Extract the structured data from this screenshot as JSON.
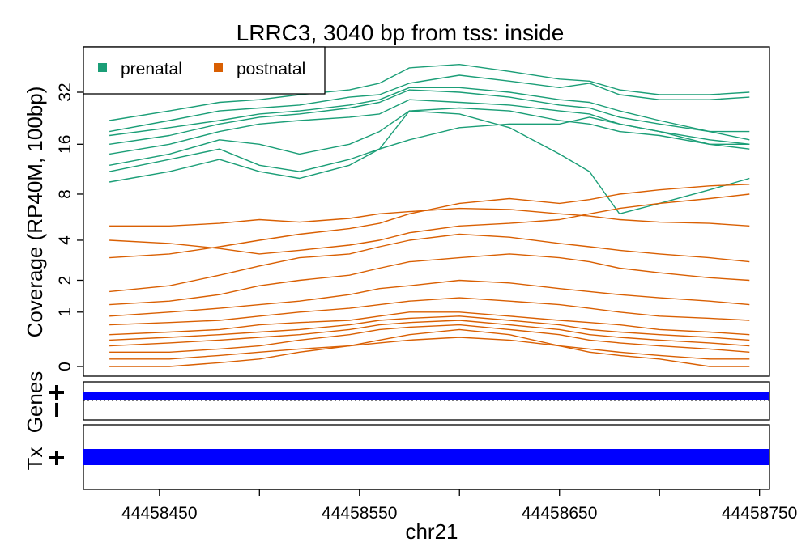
{
  "chart_data": {
    "type": "line",
    "title": "LRRC3, 3040 bp from tss: inside",
    "xlabel": "chr21",
    "ylabel": "Coverage (RP40M, 100bp)",
    "x_ticks": [
      44458450,
      44458550,
      44458650,
      44458750
    ],
    "x_range": [
      44458412,
      44458755
    ],
    "x_data_range": [
      44458425,
      44458745
    ],
    "y_scale": "log2(y+1)",
    "y_ticks": [
      0,
      1,
      2,
      4,
      8,
      16,
      32
    ],
    "legend_position": "top-left",
    "legend": [
      {
        "name": "prenatal",
        "color": "#1B9E77"
      },
      {
        "name": "postnatal",
        "color": "#D95F02"
      }
    ],
    "series": [
      {
        "group": "prenatal",
        "color": "#1B9E77",
        "x": [
          44458425,
          44458455,
          44458480,
          44458500,
          44458520,
          44458545,
          44458560,
          44458575,
          44458600,
          44458625,
          44458650,
          44458665,
          44458680,
          44458700,
          44458725,
          44458745
        ],
        "y": [
          22,
          25,
          28,
          29,
          31,
          33,
          36,
          44,
          46,
          42,
          38,
          37,
          33,
          31,
          31,
          32
        ]
      },
      {
        "group": "prenatal",
        "color": "#1B9E77",
        "x": [
          44458425,
          44458455,
          44458480,
          44458500,
          44458520,
          44458545,
          44458560,
          44458575,
          44458600,
          44458625,
          44458650,
          44458665,
          44458680,
          44458700,
          44458725,
          44458745
        ],
        "y": [
          19,
          22,
          25,
          26,
          27,
          30,
          31,
          36,
          40,
          37,
          34,
          36,
          31,
          29,
          29,
          30
        ]
      },
      {
        "group": "prenatal",
        "color": "#1B9E77",
        "x": [
          44458425,
          44458455,
          44458480,
          44458500,
          44458520,
          44458545,
          44458560,
          44458575,
          44458600,
          44458625,
          44458650,
          44458665,
          44458680,
          44458700,
          44458725,
          44458745
        ],
        "y": [
          18,
          20,
          22,
          24,
          25,
          27,
          29,
          34,
          34,
          32,
          29,
          28,
          25,
          22,
          19,
          17
        ]
      },
      {
        "group": "prenatal",
        "color": "#1B9E77",
        "x": [
          44458425,
          44458455,
          44458480,
          44458500,
          44458520,
          44458545,
          44458560,
          44458575,
          44458600,
          44458625,
          44458650,
          44458665,
          44458680,
          44458700,
          44458725,
          44458745
        ],
        "y": [
          16,
          18,
          21,
          23,
          24,
          26,
          28,
          33,
          32,
          30,
          27,
          26,
          23,
          21,
          19,
          19
        ]
      },
      {
        "group": "prenatal",
        "color": "#1B9E77",
        "x": [
          44458425,
          44458455,
          44458480,
          44458500,
          44458520,
          44458545,
          44458560,
          44458575,
          44458600,
          44458625,
          44458650,
          44458665,
          44458680,
          44458700,
          44458725,
          44458745
        ],
        "y": [
          14,
          16,
          19,
          21,
          22,
          23,
          24,
          29,
          28,
          27,
          25,
          24,
          21,
          19,
          17,
          16
        ]
      },
      {
        "group": "prenatal",
        "color": "#1B9E77",
        "x": [
          44458425,
          44458455,
          44458480,
          44458500,
          44458520,
          44458545,
          44458560,
          44458575,
          44458600,
          44458625,
          44458650,
          44458665,
          44458680,
          44458700,
          44458725,
          44458745
        ],
        "y": [
          12,
          14,
          17,
          16,
          14,
          16,
          19,
          25,
          26,
          25,
          22,
          21,
          19,
          18,
          16,
          16
        ]
      },
      {
        "group": "prenatal",
        "color": "#1B9E77",
        "x": [
          44458425,
          44458455,
          44458480,
          44458500,
          44458520,
          44458545,
          44458560,
          44458575,
          44458600,
          44458625,
          44458650,
          44458665,
          44458680,
          44458700,
          44458725,
          44458745
        ],
        "y": [
          11,
          13,
          15,
          12,
          11,
          13,
          15,
          17,
          20,
          21,
          21,
          23,
          21,
          19,
          16,
          15
        ]
      },
      {
        "group": "prenatal",
        "color": "#1B9E77",
        "x": [
          44458425,
          44458455,
          44458480,
          44458500,
          44458520,
          44458545,
          44458560,
          44458575,
          44458600,
          44458625,
          44458650,
          44458665,
          44458680,
          44458700,
          44458725,
          44458745
        ],
        "y": [
          9.5,
          11,
          13,
          11,
          10,
          12,
          15,
          25,
          24,
          20,
          14,
          11,
          6,
          7,
          8.5,
          10
        ]
      },
      {
        "group": "postnatal",
        "color": "#D95F02",
        "x": [
          44458425,
          44458455,
          44458480,
          44458500,
          44458520,
          44458545,
          44458560,
          44458575,
          44458600,
          44458625,
          44458650,
          44458665,
          44458680,
          44458700,
          44458725,
          44458745
        ],
        "y": [
          5,
          5,
          5.2,
          5.5,
          5.3,
          5.6,
          6,
          6.2,
          6.5,
          6.4,
          6,
          5.8,
          5.5,
          5.3,
          5.2,
          5
        ]
      },
      {
        "group": "postnatal",
        "color": "#D95F02",
        "x": [
          44458425,
          44458455,
          44458480,
          44458500,
          44458520,
          44458545,
          44458560,
          44458575,
          44458600,
          44458625,
          44458650,
          44458665,
          44458680,
          44458700,
          44458725,
          44458745
        ],
        "y": [
          3,
          3.2,
          3.6,
          4,
          4.4,
          4.8,
          5.2,
          6,
          7,
          7.5,
          7,
          7.4,
          8,
          8.5,
          9,
          9.2
        ]
      },
      {
        "group": "postnatal",
        "color": "#D95F02",
        "x": [
          44458425,
          44458455,
          44458480,
          44458500,
          44458520,
          44458545,
          44458560,
          44458575,
          44458600,
          44458625,
          44458650,
          44458665,
          44458680,
          44458700,
          44458725,
          44458745
        ],
        "y": [
          4,
          3.8,
          3.5,
          3.2,
          3.4,
          3.7,
          4,
          4.5,
          5,
          5.2,
          5.5,
          6,
          6.5,
          7,
          7.5,
          8
        ]
      },
      {
        "group": "postnatal",
        "color": "#D95F02",
        "x": [
          44458425,
          44458455,
          44458480,
          44458500,
          44458520,
          44458545,
          44458560,
          44458575,
          44458600,
          44458625,
          44458650,
          44458665,
          44458680,
          44458700,
          44458725,
          44458745
        ],
        "y": [
          1.6,
          1.8,
          2.2,
          2.6,
          3,
          3.2,
          3.6,
          4,
          4.4,
          4.2,
          3.8,
          3.6,
          3.4,
          3.2,
          3,
          2.8
        ]
      },
      {
        "group": "postnatal",
        "color": "#D95F02",
        "x": [
          44458425,
          44458455,
          44458480,
          44458500,
          44458520,
          44458545,
          44458560,
          44458575,
          44458600,
          44458625,
          44458650,
          44458665,
          44458680,
          44458700,
          44458725,
          44458745
        ],
        "y": [
          1.2,
          1.3,
          1.5,
          1.8,
          2,
          2.2,
          2.5,
          2.8,
          3,
          3.2,
          3,
          2.8,
          2.5,
          2.3,
          2.1,
          2
        ]
      },
      {
        "group": "postnatal",
        "color": "#D95F02",
        "x": [
          44458425,
          44458455,
          44458480,
          44458500,
          44458520,
          44458545,
          44458560,
          44458575,
          44458600,
          44458625,
          44458650,
          44458665,
          44458680,
          44458700,
          44458725,
          44458745
        ],
        "y": [
          0.9,
          1,
          1.1,
          1.2,
          1.3,
          1.5,
          1.7,
          1.8,
          2,
          1.9,
          1.7,
          1.6,
          1.5,
          1.4,
          1.3,
          1.2
        ]
      },
      {
        "group": "postnatal",
        "color": "#D95F02",
        "x": [
          44458425,
          44458455,
          44458480,
          44458500,
          44458520,
          44458545,
          44458560,
          44458575,
          44458600,
          44458625,
          44458650,
          44458665,
          44458680,
          44458700,
          44458725,
          44458745
        ],
        "y": [
          0.7,
          0.75,
          0.8,
          0.9,
          1,
          1.1,
          1.2,
          1.3,
          1.4,
          1.3,
          1.2,
          1.1,
          1,
          0.9,
          0.85,
          0.8
        ]
      },
      {
        "group": "postnatal",
        "color": "#D95F02",
        "x": [
          44458425,
          44458455,
          44458480,
          44458500,
          44458520,
          44458545,
          44458560,
          44458575,
          44458600,
          44458625,
          44458650,
          44458665,
          44458680,
          44458700,
          44458725,
          44458745
        ],
        "y": [
          0.5,
          0.55,
          0.6,
          0.7,
          0.75,
          0.8,
          0.9,
          1,
          1,
          0.9,
          0.8,
          0.75,
          0.7,
          0.6,
          0.55,
          0.5
        ]
      },
      {
        "group": "postnatal",
        "color": "#D95F02",
        "x": [
          44458425,
          44458455,
          44458480,
          44458500,
          44458520,
          44458545,
          44458560,
          44458575,
          44458600,
          44458625,
          44458650,
          44458665,
          44458680,
          44458700,
          44458725,
          44458745
        ],
        "y": [
          0.4,
          0.45,
          0.5,
          0.55,
          0.6,
          0.7,
          0.8,
          0.85,
          0.9,
          0.8,
          0.7,
          0.6,
          0.55,
          0.5,
          0.45,
          0.4
        ]
      },
      {
        "group": "postnatal",
        "color": "#D95F02",
        "x": [
          44458425,
          44458455,
          44458480,
          44458500,
          44458520,
          44458545,
          44458560,
          44458575,
          44458600,
          44458625,
          44458650,
          44458665,
          44458680,
          44458700,
          44458725,
          44458745
        ],
        "y": [
          0.3,
          0.35,
          0.4,
          0.45,
          0.5,
          0.6,
          0.7,
          0.75,
          0.8,
          0.7,
          0.6,
          0.5,
          0.45,
          0.4,
          0.35,
          0.3
        ]
      },
      {
        "group": "postnatal",
        "color": "#D95F02",
        "x": [
          44458425,
          44458455,
          44458480,
          44458500,
          44458520,
          44458545,
          44458560,
          44458575,
          44458600,
          44458625,
          44458650,
          44458665,
          44458680,
          44458700,
          44458725,
          44458745
        ],
        "y": [
          0.2,
          0.2,
          0.25,
          0.3,
          0.4,
          0.5,
          0.6,
          0.65,
          0.7,
          0.6,
          0.5,
          0.4,
          0.35,
          0.3,
          0.25,
          0.2
        ]
      },
      {
        "group": "postnatal",
        "color": "#D95F02",
        "x": [
          44458425,
          44458455,
          44458480,
          44458500,
          44458520,
          44458545,
          44458560,
          44458575,
          44458600,
          44458625,
          44458650,
          44458665,
          44458680,
          44458700,
          44458725,
          44458745
        ],
        "y": [
          0.1,
          0.1,
          0.15,
          0.2,
          0.25,
          0.3,
          0.35,
          0.4,
          0.45,
          0.4,
          0.3,
          0.25,
          0.2,
          0.15,
          0.1,
          0.1
        ]
      },
      {
        "group": "postnatal",
        "color": "#D95F02",
        "x": [
          44458425,
          44458455,
          44458480,
          44458500,
          44458520,
          44458545,
          44458560,
          44458575,
          44458600,
          44458625,
          44458650,
          44458665,
          44458680,
          44458700,
          44458725,
          44458745
        ],
        "y": [
          0,
          0,
          0.05,
          0.1,
          0.2,
          0.3,
          0.4,
          0.5,
          0.6,
          0.5,
          0.3,
          0.2,
          0.15,
          0.1,
          0,
          0
        ]
      }
    ]
  },
  "tracks": {
    "genes_label": "Genes",
    "tx_label": "Tx",
    "plus_label": "+",
    "minus_label": "−",
    "feature_color": "#0000FF"
  }
}
